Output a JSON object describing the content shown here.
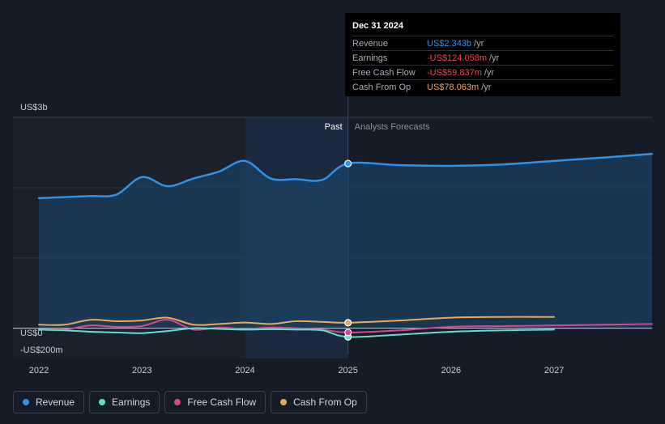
{
  "chart_data": {
    "type": "area",
    "units": "US$ billions",
    "y_axis_labels": [
      "US$3b",
      "US$0",
      "-US$200m"
    ],
    "x_tick_labels": [
      "2022",
      "2023",
      "2024",
      "2025",
      "2026",
      "2027"
    ],
    "xlim": [
      2022.0,
      2027.95
    ],
    "ylim": [
      -0.2,
      3.0
    ],
    "divider_x": 2025.0,
    "past_label": "Past",
    "forecast_label": "Analysts Forecasts",
    "series": [
      {
        "name": "Revenue",
        "color": "#2e93e8",
        "points": [
          [
            2022.0,
            1.85
          ],
          [
            2022.5,
            1.88
          ],
          [
            2022.75,
            1.9
          ],
          [
            2023.0,
            2.15
          ],
          [
            2023.25,
            2.02
          ],
          [
            2023.5,
            2.13
          ],
          [
            2023.75,
            2.23
          ],
          [
            2024.0,
            2.38
          ],
          [
            2024.25,
            2.13
          ],
          [
            2024.5,
            2.12
          ],
          [
            2024.75,
            2.11
          ],
          [
            2025.0,
            2.343
          ],
          [
            2025.5,
            2.32
          ],
          [
            2026.0,
            2.31
          ],
          [
            2026.5,
            2.33
          ],
          [
            2027.0,
            2.38
          ],
          [
            2027.5,
            2.43
          ],
          [
            2027.95,
            2.48
          ]
        ]
      },
      {
        "name": "Earnings",
        "color": "#5fe0cc",
        "points": [
          [
            2022.0,
            -0.02
          ],
          [
            2022.25,
            -0.03
          ],
          [
            2022.5,
            -0.05
          ],
          [
            2022.75,
            -0.06
          ],
          [
            2023.0,
            -0.07
          ],
          [
            2023.25,
            -0.04
          ],
          [
            2023.5,
            0.0
          ],
          [
            2023.75,
            -0.01
          ],
          [
            2024.0,
            -0.02
          ],
          [
            2024.25,
            -0.015
          ],
          [
            2024.5,
            -0.02
          ],
          [
            2024.75,
            -0.03
          ],
          [
            2025.0,
            -0.124
          ],
          [
            2025.5,
            -0.09
          ],
          [
            2026.0,
            -0.05
          ],
          [
            2026.5,
            -0.03
          ],
          [
            2027.0,
            -0.02
          ]
        ]
      },
      {
        "name": "Free Cash Flow",
        "color": "#cf4a8e",
        "points": [
          [
            2022.0,
            -0.02
          ],
          [
            2022.25,
            -0.02
          ],
          [
            2022.5,
            0.04
          ],
          [
            2022.75,
            0.02
          ],
          [
            2023.0,
            0.03
          ],
          [
            2023.25,
            0.12
          ],
          [
            2023.5,
            -0.02
          ],
          [
            2023.75,
            0.01
          ],
          [
            2024.0,
            -0.01
          ],
          [
            2024.25,
            0.01
          ],
          [
            2024.5,
            0.0
          ],
          [
            2024.75,
            -0.02
          ],
          [
            2025.0,
            -0.06
          ],
          [
            2025.5,
            -0.03
          ],
          [
            2026.0,
            0.02
          ],
          [
            2026.5,
            0.03
          ],
          [
            2027.0,
            0.04
          ],
          [
            2027.5,
            0.05
          ],
          [
            2027.95,
            0.06
          ]
        ]
      },
      {
        "name": "Cash From Op",
        "color": "#e8a95b",
        "points": [
          [
            2022.0,
            0.05
          ],
          [
            2022.25,
            0.05
          ],
          [
            2022.5,
            0.12
          ],
          [
            2022.75,
            0.1
          ],
          [
            2023.0,
            0.11
          ],
          [
            2023.25,
            0.15
          ],
          [
            2023.5,
            0.05
          ],
          [
            2023.75,
            0.06
          ],
          [
            2024.0,
            0.08
          ],
          [
            2024.25,
            0.06
          ],
          [
            2024.5,
            0.1
          ],
          [
            2024.75,
            0.09
          ],
          [
            2025.0,
            0.078
          ],
          [
            2025.5,
            0.11
          ],
          [
            2026.0,
            0.15
          ],
          [
            2026.5,
            0.16
          ],
          [
            2027.0,
            0.16
          ]
        ]
      }
    ]
  },
  "tooltip": {
    "date": "Dec 31 2024",
    "rows": [
      {
        "label": "Revenue",
        "value": "US$2.343b",
        "unit": "/yr",
        "color": "#2e93e8"
      },
      {
        "label": "Earnings",
        "value": "-US$124.058m",
        "unit": "/yr",
        "color": "#e8474f"
      },
      {
        "label": "Free Cash Flow",
        "value": "-US$59.837m",
        "unit": "/yr",
        "color": "#e8474f"
      },
      {
        "label": "Cash From Op",
        "value": "US$78.063m",
        "unit": "/yr",
        "color": "#e8a95b"
      }
    ]
  },
  "legend": [
    {
      "label": "Revenue",
      "color": "#2e93e8"
    },
    {
      "label": "Earnings",
      "color": "#5fe0cc"
    },
    {
      "label": "Free Cash Flow",
      "color": "#cf4a8e"
    },
    {
      "label": "Cash From Op",
      "color": "#e8a95b"
    }
  ]
}
